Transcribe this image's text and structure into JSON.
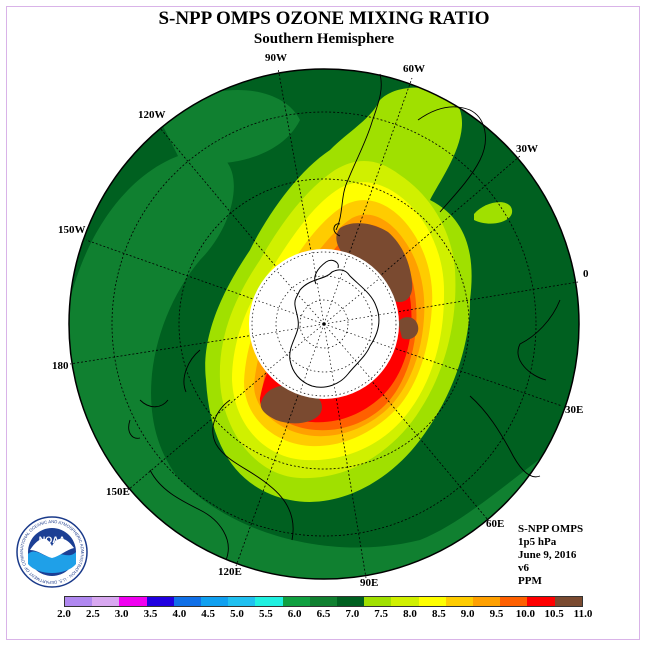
{
  "title": "S-NPP OMPS OZONE MIXING RATIO",
  "subtitle": "Southern Hemisphere",
  "longitude_labels": [
    "90W",
    "60W",
    "30W",
    "0",
    "30E",
    "60E",
    "90E",
    "120E",
    "150E",
    "180",
    "150W",
    "120W"
  ],
  "info": {
    "line1": "S-NPP OMPS",
    "line2": "1p5 hPa",
    "line3": "June 9, 2016",
    "line4": "v6",
    "line5": "PPM"
  },
  "colorbar": {
    "labels": [
      "2.0",
      "2.5",
      "3.0",
      "3.5",
      "4.0",
      "4.5",
      "5.0",
      "5.5",
      "6.0",
      "6.5",
      "7.0",
      "7.5",
      "8.0",
      "8.5",
      "9.0",
      "9.5",
      "10.0",
      "10.5",
      "11.0"
    ],
    "colors": [
      "#b088f0",
      "#d8a8f0",
      "#f000f0",
      "#2000e0",
      "#1070e8",
      "#10a0f0",
      "#20c0f0",
      "#20f0e0",
      "#10a040",
      "#108030",
      "#006020",
      "#a0e000",
      "#d0f000",
      "#ffff00",
      "#ffcc00",
      "#ffa000",
      "#ff6000",
      "#ff0000",
      "#7a4a30"
    ]
  },
  "logo": {
    "text": "NOAA",
    "ring_text": "NATIONAL OCEANIC AND ATMOSPHERIC ADMINISTRATION · U.S. DEPARTMENT OF COMMERCE"
  }
}
